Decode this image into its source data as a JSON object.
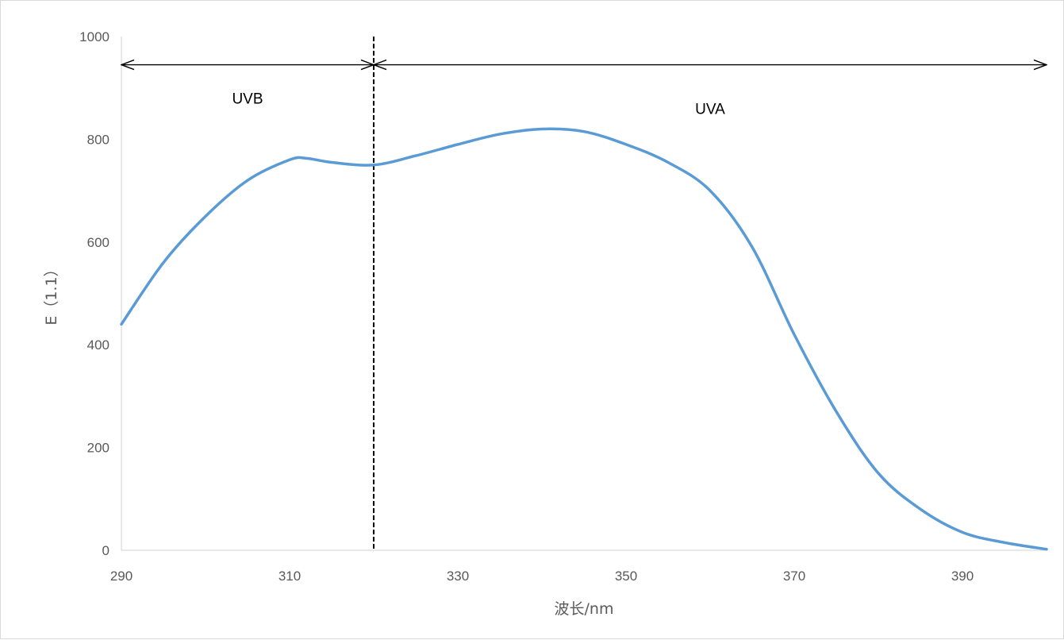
{
  "chart_data": {
    "type": "line",
    "title": "",
    "xlabel": "波长/nm",
    "ylabel": "E（1.1）",
    "xlim": [
      290,
      400
    ],
    "ylim": [
      0,
      1000
    ],
    "x_ticks": [
      290,
      310,
      330,
      350,
      370,
      390
    ],
    "y_ticks": [
      0,
      200,
      400,
      600,
      800,
      1000
    ],
    "grid": false,
    "legend": "none",
    "series": [
      {
        "color": "#5b9bd5",
        "x": [
          290,
          295,
          300,
          305,
          310,
          312,
          315,
          320,
          325,
          330,
          335,
          340,
          345,
          350,
          355,
          360,
          365,
          370,
          375,
          380,
          385,
          390,
          395,
          400
        ],
        "y": [
          440,
          560,
          650,
          720,
          760,
          763,
          755,
          750,
          768,
          790,
          810,
          820,
          815,
          790,
          755,
          700,
          590,
          420,
          270,
          150,
          80,
          35,
          15,
          2
        ]
      }
    ],
    "divider": {
      "x": 320,
      "style": "dashed",
      "color": "#000000"
    },
    "regions": [
      {
        "label": "UVB",
        "x_start": 290,
        "x_end": 320,
        "arrow_y": 945,
        "label_y": 880
      },
      {
        "label": "UVA",
        "x_start": 320,
        "x_end": 400,
        "arrow_y": 945,
        "label_y": 860
      }
    ]
  }
}
